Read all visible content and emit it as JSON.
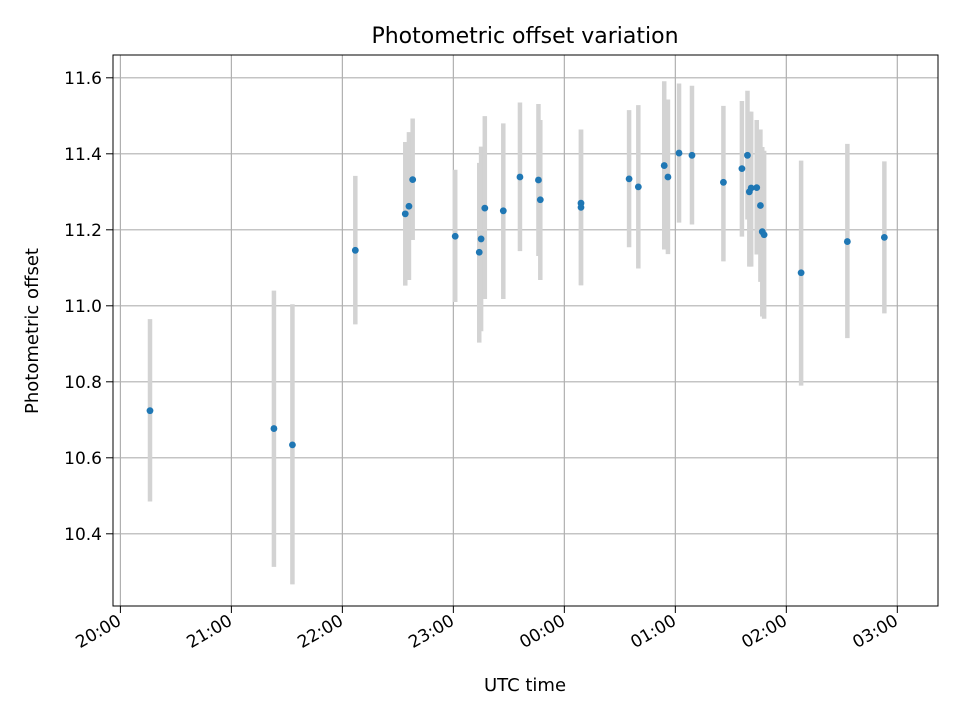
{
  "chart_data": {
    "type": "scatter",
    "title": "Photometric offset variation",
    "xlabel": "UTC time",
    "ylabel": "Photometric offset",
    "x_axis_type": "time",
    "x_range": [
      "19:56",
      "03:22"
    ],
    "ylim": [
      10.21,
      11.66
    ],
    "x_ticks": [
      "20:00",
      "21:00",
      "22:00",
      "23:00",
      "00:00",
      "01:00",
      "02:00",
      "03:00"
    ],
    "y_ticks": [
      10.4,
      10.6,
      10.8,
      11.0,
      11.2,
      11.4,
      11.6
    ],
    "y_tick_labels": [
      "10.4",
      "10.6",
      "10.8",
      "11.0",
      "11.2",
      "11.4",
      "11.6"
    ],
    "grid": true,
    "colors": {
      "point": "#1f77b4",
      "errorbar": "#d3d3d3",
      "grid": "#b0b0b0"
    },
    "points": [
      {
        "t": "20:16",
        "y": 10.724,
        "lo": 10.485,
        "hi": 10.965
      },
      {
        "t": "21:23",
        "y": 10.677,
        "lo": 10.313,
        "hi": 11.04
      },
      {
        "t": "21:33",
        "y": 10.634,
        "lo": 10.267,
        "hi": 11.004
      },
      {
        "t": "22:07",
        "y": 11.146,
        "lo": 10.951,
        "hi": 11.342
      },
      {
        "t": "22:34",
        "y": 11.242,
        "lo": 11.053,
        "hi": 11.431
      },
      {
        "t": "22:36",
        "y": 11.262,
        "lo": 11.068,
        "hi": 11.457
      },
      {
        "t": "22:38",
        "y": 11.332,
        "lo": 11.173,
        "hi": 11.493
      },
      {
        "t": "23:01",
        "y": 11.183,
        "lo": 11.01,
        "hi": 11.358
      },
      {
        "t": "23:14",
        "y": 11.141,
        "lo": 10.903,
        "hi": 11.376
      },
      {
        "t": "23:15",
        "y": 11.176,
        "lo": 10.933,
        "hi": 11.419
      },
      {
        "t": "23:17",
        "y": 11.257,
        "lo": 11.018,
        "hi": 11.499
      },
      {
        "t": "23:27",
        "y": 11.25,
        "lo": 11.018,
        "hi": 11.48
      },
      {
        "t": "23:36",
        "y": 11.339,
        "lo": 11.144,
        "hi": 11.535
      },
      {
        "t": "23:46",
        "y": 11.331,
        "lo": 11.131,
        "hi": 11.531
      },
      {
        "t": "23:47",
        "y": 11.279,
        "lo": 11.068,
        "hi": 11.489
      },
      {
        "t": "00:09",
        "y": 11.259,
        "lo": 11.054,
        "hi": 11.464
      },
      {
        "t": "00:09",
        "y": 11.27,
        "lo": 11.054,
        "hi": 11.464
      },
      {
        "t": "00:35",
        "y": 11.334,
        "lo": 11.154,
        "hi": 11.515
      },
      {
        "t": "00:40",
        "y": 11.313,
        "lo": 11.098,
        "hi": 11.528
      },
      {
        "t": "00:54",
        "y": 11.369,
        "lo": 11.148,
        "hi": 11.591
      },
      {
        "t": "00:56",
        "y": 11.339,
        "lo": 11.136,
        "hi": 11.543
      },
      {
        "t": "01:02",
        "y": 11.402,
        "lo": 11.219,
        "hi": 11.585
      },
      {
        "t": "01:09",
        "y": 11.396,
        "lo": 11.214,
        "hi": 11.579
      },
      {
        "t": "01:26",
        "y": 11.325,
        "lo": 11.117,
        "hi": 11.526
      },
      {
        "t": "01:36",
        "y": 11.361,
        "lo": 11.182,
        "hi": 11.539
      },
      {
        "t": "01:39",
        "y": 11.396,
        "lo": 11.227,
        "hi": 11.566
      },
      {
        "t": "01:40",
        "y": 11.3,
        "lo": 11.103,
        "hi": 11.511
      },
      {
        "t": "01:41",
        "y": 11.31,
        "lo": 11.103,
        "hi": 11.511
      },
      {
        "t": "01:44",
        "y": 11.311,
        "lo": 11.135,
        "hi": 11.489
      },
      {
        "t": "01:46",
        "y": 11.264,
        "lo": 11.063,
        "hi": 11.464
      },
      {
        "t": "01:47",
        "y": 11.195,
        "lo": 10.972,
        "hi": 11.418
      },
      {
        "t": "01:48",
        "y": 11.187,
        "lo": 10.966,
        "hi": 11.408
      },
      {
        "t": "02:08",
        "y": 11.087,
        "lo": 10.79,
        "hi": 11.382
      },
      {
        "t": "02:33",
        "y": 11.169,
        "lo": 10.915,
        "hi": 11.426
      },
      {
        "t": "02:53",
        "y": 11.18,
        "lo": 10.98,
        "hi": 11.38
      }
    ]
  }
}
